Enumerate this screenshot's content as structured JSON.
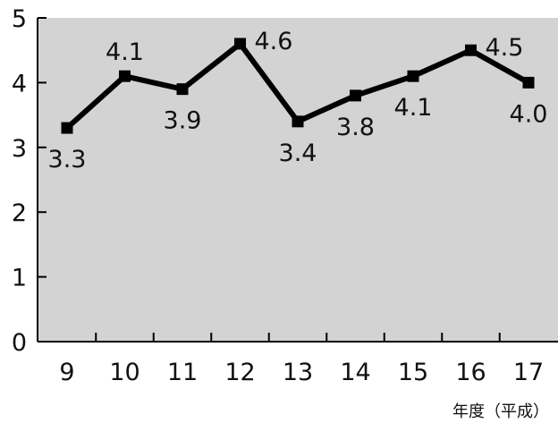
{
  "chart_data": {
    "type": "line",
    "title": "",
    "xlabel": "年度（平成）",
    "ylabel": "",
    "categories": [
      "9",
      "10",
      "11",
      "12",
      "13",
      "14",
      "15",
      "16",
      "17"
    ],
    "series": [
      {
        "values": [
          3.3,
          4.1,
          3.9,
          4.6,
          3.4,
          3.8,
          4.1,
          4.5,
          4.0
        ]
      }
    ],
    "data_labels": [
      "3.3",
      "4.1",
      "3.9",
      "4.6",
      "3.4",
      "3.8",
      "4.1",
      "4.5",
      "4.0"
    ],
    "y_ticks": [
      "0",
      "1",
      "2",
      "3",
      "4",
      "5"
    ],
    "ylim": [
      0,
      5
    ],
    "grid": false,
    "legend": "none",
    "colors": {
      "plot_background": "#d3d3d3",
      "line": "#000000",
      "axis": "#000000"
    },
    "marker": "square"
  }
}
